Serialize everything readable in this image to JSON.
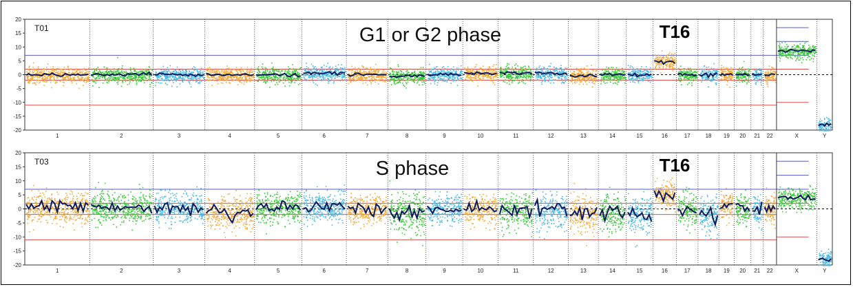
{
  "chart_data": [
    {
      "type": "scatter",
      "label": "T01",
      "annotation": "G1 or G2 phase",
      "highlight": "T16",
      "ylim": [
        -20,
        20
      ],
      "yticks": [
        20,
        15,
        10,
        5,
        0,
        -5,
        -10,
        -15,
        -20
      ],
      "chromosomes": [
        "1",
        "2",
        "3",
        "4",
        "5",
        "6",
        "7",
        "8",
        "9",
        "10",
        "11",
        "12",
        "13",
        "14",
        "15",
        "16",
        "17",
        "18",
        "19",
        "20",
        "21",
        "22",
        "X",
        "Y"
      ],
      "chromosome_sizes": [
        249,
        243,
        198,
        191,
        181,
        171,
        159,
        146,
        141,
        136,
        135,
        134,
        115,
        107,
        102,
        90,
        83,
        80,
        59,
        64,
        47,
        51,
        155,
        59
      ],
      "segment_means": [
        0,
        0,
        0,
        0,
        0,
        0.5,
        0,
        -0.5,
        0,
        0.5,
        0.5,
        0.5,
        -0.5,
        0,
        0,
        4.8,
        0,
        0,
        0,
        0,
        0,
        0,
        8.5,
        -18
      ],
      "noise": [
        0.6,
        0.6,
        0.6,
        0.6,
        0.6,
        0.6,
        0.6,
        0.6,
        0.6,
        0.6,
        0.6,
        0.6,
        0.6,
        0.6,
        0.6,
        0.6,
        0.6,
        0.6,
        0.6,
        0.6,
        0.6,
        0.6,
        0.6,
        0.6
      ],
      "reference_lines_blue": [
        7,
        12,
        17
      ],
      "reference_lines_red": [
        2,
        -2,
        -11,
        -10
      ],
      "colors": {
        "orange": "#f4a935",
        "green": "#38c838",
        "blue": "#47b8e8",
        "trend": "#0d1a5c",
        "ref_blue": "#5a5ad0",
        "ref_red": "#e05050"
      }
    },
    {
      "type": "scatter",
      "label": "T03",
      "annotation": "S phase",
      "highlight": "T16",
      "ylim": [
        -20,
        20
      ],
      "yticks": [
        20,
        15,
        10,
        5,
        0,
        -5,
        -10,
        -15,
        -20
      ],
      "chromosomes": [
        "1",
        "2",
        "3",
        "4",
        "5",
        "6",
        "7",
        "8",
        "9",
        "10",
        "11",
        "12",
        "13",
        "14",
        "15",
        "16",
        "17",
        "18",
        "19",
        "20",
        "21",
        "22",
        "X",
        "Y"
      ],
      "chromosome_sizes": [
        249,
        243,
        198,
        191,
        181,
        171,
        159,
        146,
        141,
        136,
        135,
        134,
        115,
        107,
        102,
        90,
        83,
        80,
        59,
        64,
        47,
        51,
        155,
        59
      ],
      "segment_means": [
        0.5,
        0.5,
        0,
        -1,
        0.5,
        0.5,
        0,
        -1.5,
        0,
        0,
        -0.5,
        -0.5,
        -1.5,
        -1,
        -1.5,
        5,
        -0.5,
        -2,
        1,
        0,
        0,
        0,
        4,
        -18
      ],
      "noise": [
        2.2,
        2.2,
        2.2,
        2.5,
        2.2,
        2.2,
        2.2,
        3,
        2,
        2,
        2.5,
        2.5,
        3,
        3,
        3,
        1.8,
        2.5,
        3,
        2,
        2,
        2,
        2,
        1.2,
        0.6
      ],
      "reference_lines_blue": [
        7,
        12,
        17
      ],
      "reference_lines_red": [
        2,
        -2,
        -11,
        -10
      ],
      "colors": {
        "orange": "#f4a935",
        "green": "#38c838",
        "blue": "#47b8e8",
        "trend": "#0d1a5c",
        "ref_blue": "#5a5ad0",
        "ref_red": "#e05050"
      }
    }
  ]
}
